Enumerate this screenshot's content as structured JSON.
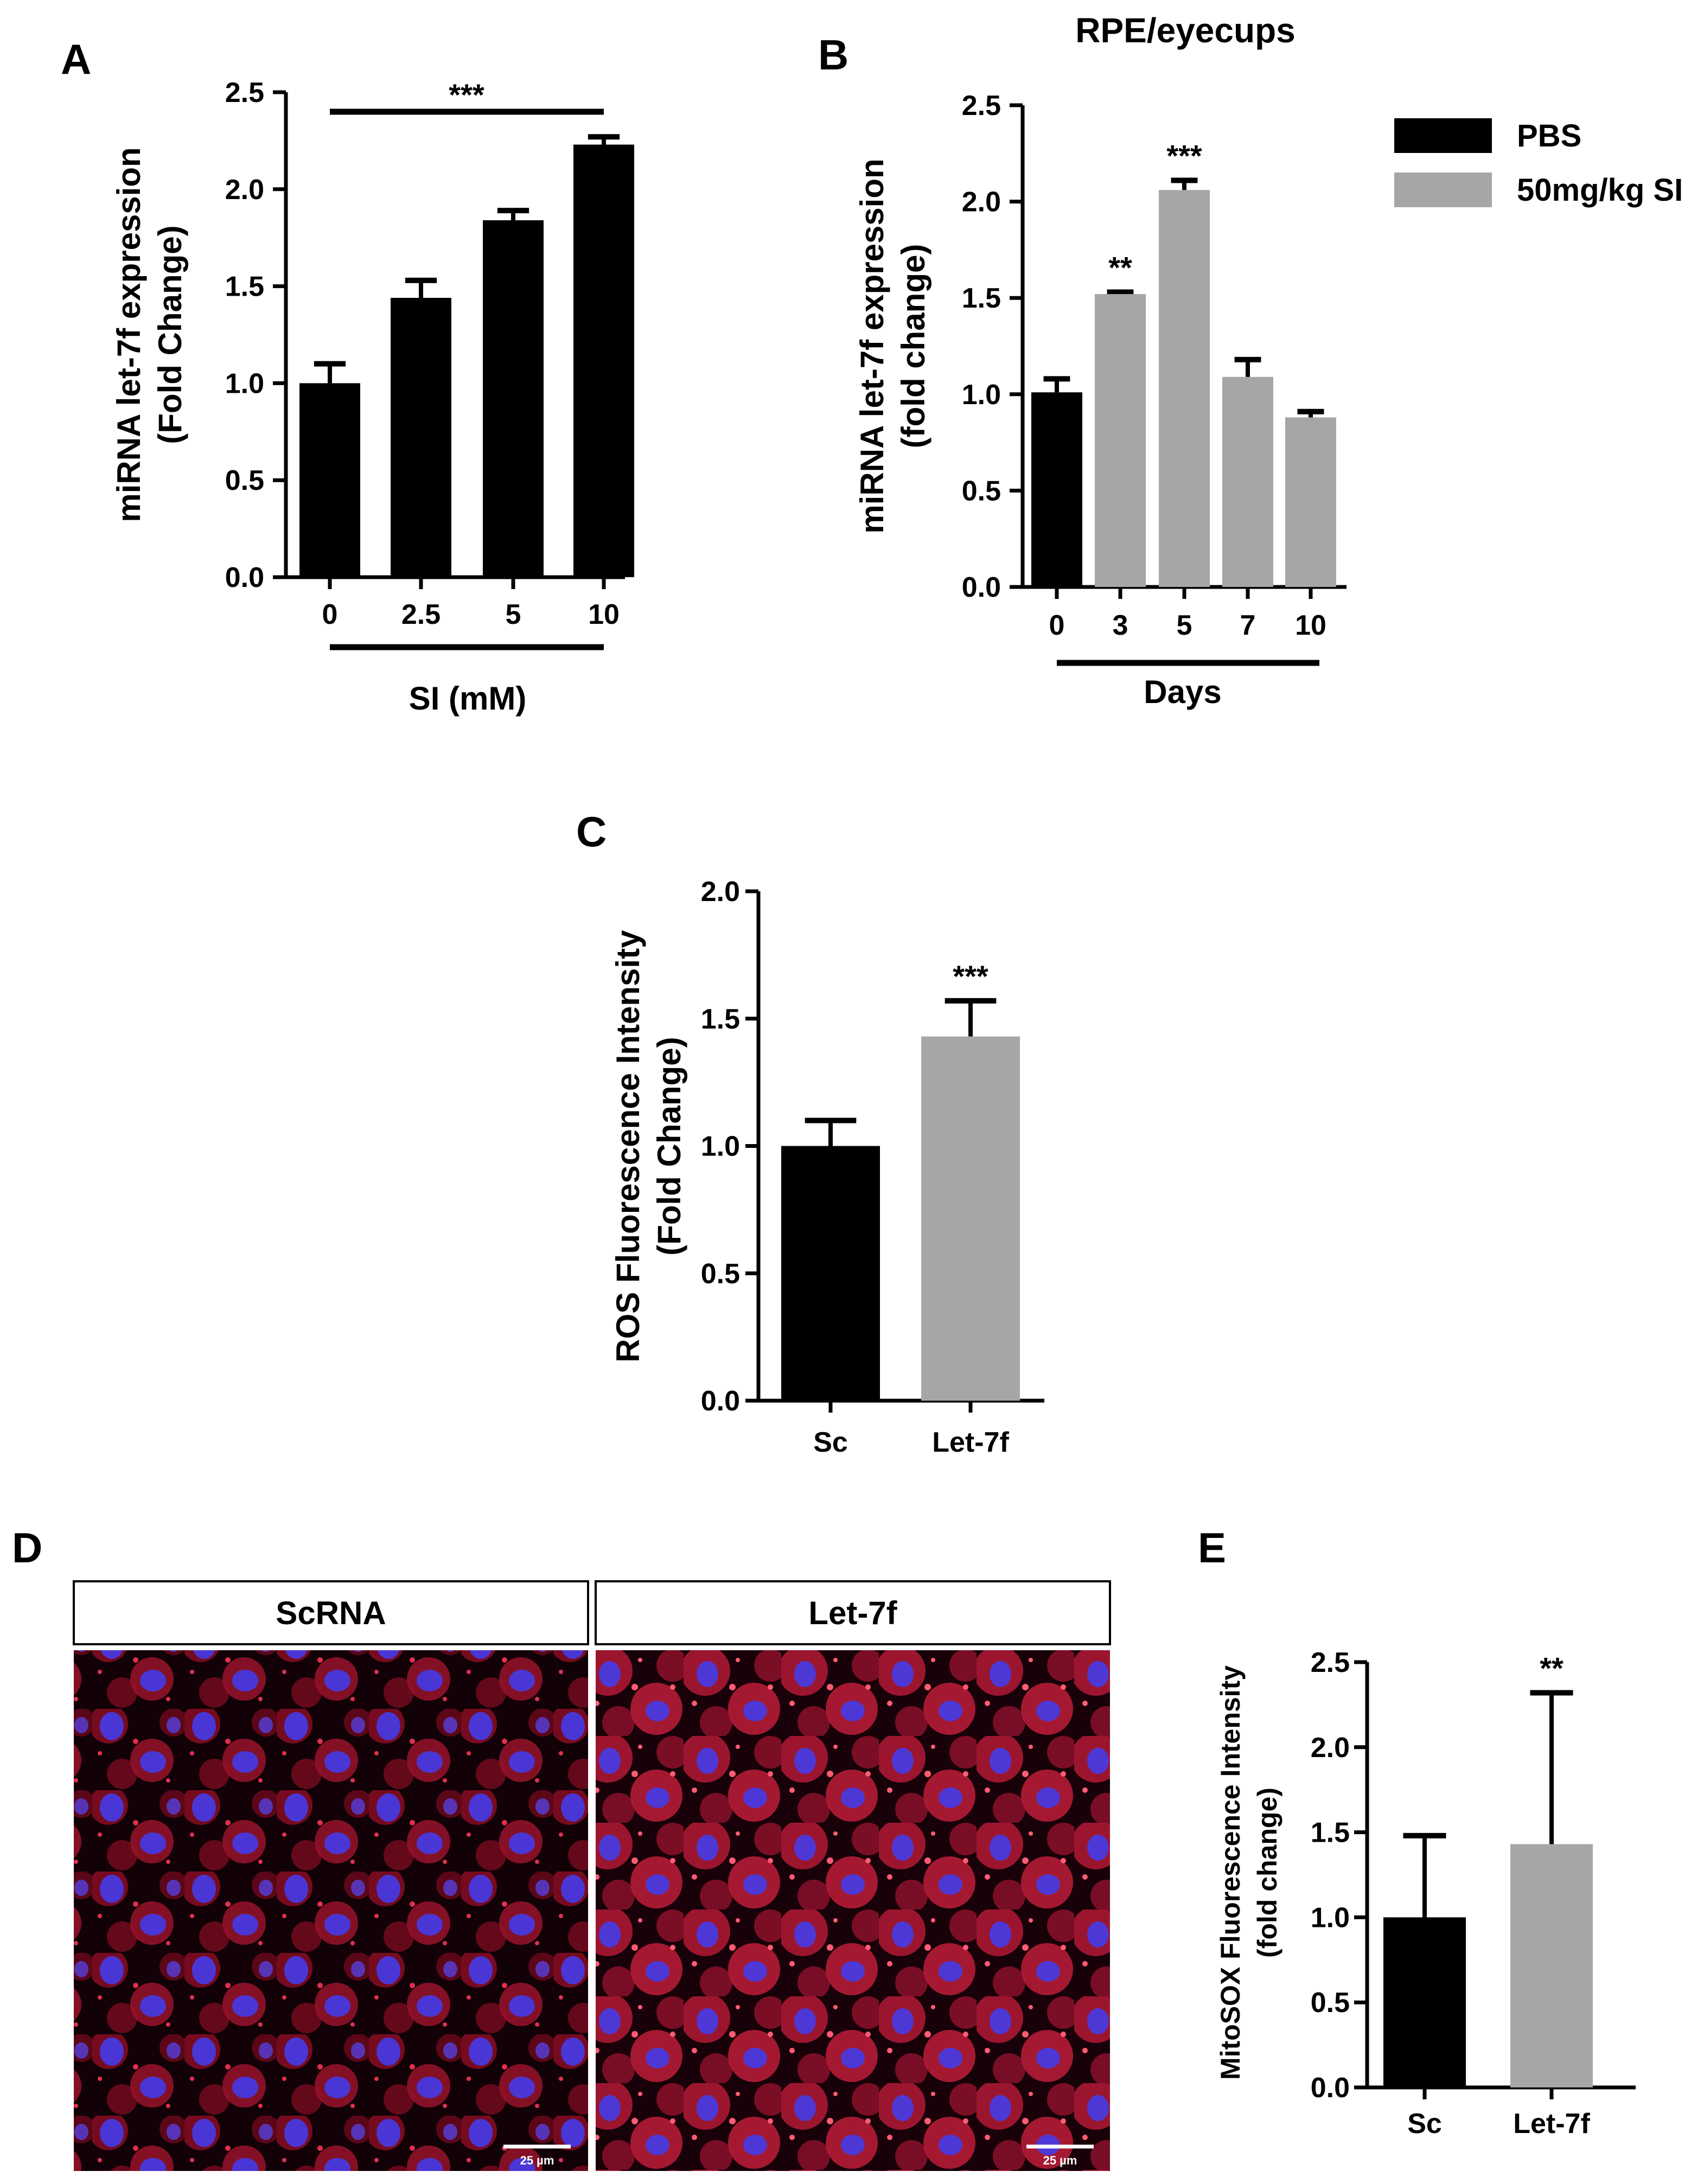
{
  "colors": {
    "black_bar": "#000000",
    "gray_bar": "#a6a6a8"
  },
  "panels": {
    "a": "A",
    "b": "B",
    "c": "C",
    "d": "D",
    "e": "E"
  },
  "chart_data": [
    {
      "id": "A",
      "type": "bar",
      "categories": [
        "0",
        "2.5",
        "5",
        "10"
      ],
      "values": [
        1.0,
        1.44,
        1.84,
        2.23
      ],
      "errors": [
        0.1,
        0.09,
        0.05,
        0.04
      ],
      "colors": [
        "#000000",
        "#000000",
        "#000000",
        "#000000"
      ],
      "title": "",
      "xlabel": "SI (mM)",
      "ylabel": [
        "miRNA let-7f expression",
        "(Fold Change)"
      ],
      "ylim": [
        0,
        2.5
      ],
      "yticks": [
        "0.0",
        "0.5",
        "1.0",
        "1.5",
        "2.0",
        "2.5"
      ],
      "significance": [
        {
          "text": "***",
          "bracket": true
        }
      ]
    },
    {
      "id": "B",
      "type": "bar",
      "categories": [
        "0",
        "3",
        "5",
        "7",
        "10"
      ],
      "values": [
        1.01,
        1.52,
        2.06,
        1.09,
        0.88
      ],
      "errors": [
        0.07,
        0.01,
        0.05,
        0.09,
        0.03
      ],
      "colors": [
        "#000000",
        "#a6a6a8",
        "#a6a6a8",
        "#a6a6a8",
        "#a6a6a8"
      ],
      "title": "RPE/eyecups",
      "xlabel": "Days",
      "ylabel": [
        "miRNA let-7f expression",
        "(fold change)"
      ],
      "ylim": [
        0,
        2.5
      ],
      "yticks": [
        "0.0",
        "0.5",
        "1.0",
        "1.5",
        "2.0",
        "2.5"
      ],
      "significance": [
        {
          "category": "3",
          "text": "**"
        },
        {
          "category": "5",
          "text": "***"
        }
      ],
      "legend": {
        "placement": "top-right",
        "entries": [
          {
            "label": "PBS",
            "color": "#000000"
          },
          {
            "label": "50mg/kg SI",
            "color": "#a6a6a8"
          }
        ]
      }
    },
    {
      "id": "C",
      "type": "bar",
      "categories": [
        "Sc",
        "Let-7f"
      ],
      "values": [
        1.0,
        1.43
      ],
      "errors": [
        0.1,
        0.14
      ],
      "colors": [
        "#000000",
        "#a6a6a8"
      ],
      "title": "",
      "xlabel": "",
      "ylabel": [
        "ROS Fluorescence Intensity",
        "(Fold Change)"
      ],
      "ylim": [
        0,
        2.0
      ],
      "yticks": [
        "0.0",
        "0.5",
        "1.0",
        "1.5",
        "2.0"
      ],
      "significance": [
        {
          "category": "Let-7f",
          "text": "***"
        }
      ]
    },
    {
      "id": "E",
      "type": "bar",
      "categories": [
        "Sc",
        "Let-7f"
      ],
      "values": [
        1.0,
        1.43
      ],
      "errors": [
        0.48,
        0.89
      ],
      "colors": [
        "#000000",
        "#a6a6a8"
      ],
      "title": "",
      "xlabel": "",
      "ylabel": [
        "MitoSOX Fluorescence Intensity",
        "(fold change)"
      ],
      "ylim": [
        0,
        2.5
      ],
      "yticks": [
        "0.0",
        "0.5",
        "1.0",
        "1.5",
        "2.0",
        "2.5"
      ],
      "significance": [
        {
          "category": "Let-7f",
          "text": "**"
        }
      ]
    }
  ],
  "micrographs": {
    "left": {
      "header": "ScRNA",
      "scale_bar": "25 µm"
    },
    "right": {
      "header": "Let-7f",
      "scale_bar": "25 µm"
    }
  }
}
